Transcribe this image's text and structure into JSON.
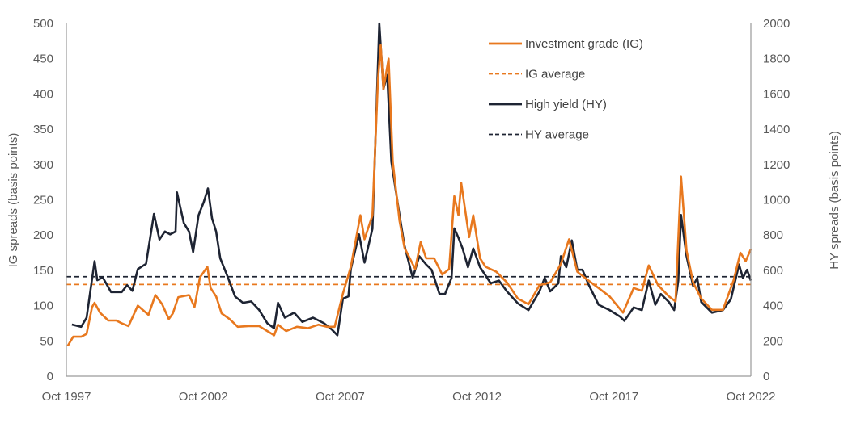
{
  "chart_data": {
    "type": "line",
    "title": "",
    "xlabel": "",
    "ylabel": "IG spreads (basis points)",
    "y2label": "HY spreads (basis points)",
    "xlim": [
      1997.75,
      2022.75
    ],
    "ylim": [
      0,
      500
    ],
    "y2lim": [
      0,
      2000
    ],
    "grid": false,
    "legend_position": "top-right",
    "x_ticks": [
      {
        "value": 1997.75,
        "label": "Oct 1997"
      },
      {
        "value": 2002.75,
        "label": "Oct 2002"
      },
      {
        "value": 2007.75,
        "label": "Oct 2007"
      },
      {
        "value": 2012.75,
        "label": "Oct 2012"
      },
      {
        "value": 2017.75,
        "label": "Oct 2017"
      },
      {
        "value": 2022.75,
        "label": "Oct 2022"
      }
    ],
    "y_ticks": [
      "0",
      "50",
      "100",
      "150",
      "200",
      "250",
      "300",
      "350",
      "400",
      "450",
      "500"
    ],
    "y2_ticks": [
      "0",
      "200",
      "400",
      "600",
      "800",
      "1000",
      "1200",
      "1400",
      "1600",
      "1800",
      "2000"
    ],
    "colors": {
      "ig": "#E8781E",
      "hy": "#1E2433"
    },
    "series": [
      {
        "name": "Investment grade (IG)",
        "axis": "left",
        "style": "solid",
        "x": [
          1997.8,
          1998.0,
          1998.29,
          1998.49,
          1998.69,
          1998.78,
          1998.98,
          1999.28,
          1999.57,
          1999.77,
          2000.02,
          2000.36,
          2000.75,
          2001.0,
          2001.25,
          2001.49,
          2001.64,
          2001.84,
          2002.23,
          2002.43,
          2002.63,
          2002.9,
          2003.02,
          2003.22,
          2003.42,
          2003.71,
          2004.01,
          2004.4,
          2004.79,
          2005.09,
          2005.34,
          2005.48,
          2005.78,
          2006.17,
          2006.57,
          2006.96,
          2007.26,
          2007.55,
          2007.85,
          2008.14,
          2008.49,
          2008.64,
          2008.93,
          2009.13,
          2009.23,
          2009.33,
          2009.52,
          2009.67,
          2009.92,
          2010.1,
          2010.49,
          2010.69,
          2010.89,
          2011.18,
          2011.48,
          2011.73,
          2011.92,
          2012.07,
          2012.17,
          2012.46,
          2012.61,
          2012.86,
          2013.06,
          2013.45,
          2013.84,
          2014.24,
          2014.63,
          2015.03,
          2015.42,
          2015.81,
          2016.11,
          2016.41,
          2016.8,
          2017.19,
          2017.59,
          2018.08,
          2018.47,
          2018.77,
          2019.02,
          2019.36,
          2019.76,
          2020.0,
          2020.2,
          2020.4,
          2020.64,
          2020.94,
          2021.33,
          2021.73,
          2022.12,
          2022.37,
          2022.56,
          2022.75
        ],
        "values": [
          43,
          56,
          56,
          60,
          98,
          104,
          90,
          79,
          79,
          75,
          71,
          100,
          87,
          115,
          102,
          81,
          89,
          112,
          115,
          98,
          140,
          155,
          125,
          113,
          89,
          81,
          70,
          71,
          71,
          64,
          58,
          73,
          64,
          70,
          68,
          73,
          70,
          70,
          117,
          155,
          228,
          194,
          228,
          419,
          469,
          407,
          450,
          304,
          220,
          182,
          152,
          190,
          167,
          167,
          144,
          152,
          255,
          228,
          274,
          197,
          228,
          167,
          155,
          148,
          133,
          110,
          102,
          129,
          133,
          159,
          194,
          148,
          136,
          125,
          113,
          90,
          125,
          121,
          157,
          129,
          113,
          106,
          283,
          178,
          133,
          110,
          94,
          94,
          136,
          175,
          163,
          180
        ]
      },
      {
        "name": "IG average",
        "axis": "left",
        "style": "dashed",
        "value": 130
      },
      {
        "name": "High yield (HY)",
        "axis": "right",
        "style": "solid",
        "x": [
          1997.95,
          1998.29,
          1998.49,
          1998.78,
          1998.88,
          1999.08,
          1999.38,
          1999.77,
          1999.97,
          2000.16,
          2000.36,
          2000.66,
          2000.95,
          2001.15,
          2001.35,
          2001.54,
          2001.74,
          2001.79,
          2002.04,
          2002.23,
          2002.38,
          2002.58,
          2002.77,
          2002.92,
          2003.07,
          2003.22,
          2003.37,
          2003.61,
          2003.91,
          2004.2,
          2004.5,
          2004.79,
          2005.09,
          2005.34,
          2005.48,
          2005.73,
          2006.07,
          2006.37,
          2006.76,
          2007.16,
          2007.45,
          2007.65,
          2007.85,
          2008.05,
          2008.14,
          2008.44,
          2008.64,
          2008.93,
          2009.08,
          2009.18,
          2009.33,
          2009.47,
          2009.62,
          2009.92,
          2010.1,
          2010.4,
          2010.64,
          2010.89,
          2011.09,
          2011.38,
          2011.58,
          2011.82,
          2011.92,
          2012.07,
          2012.22,
          2012.42,
          2012.61,
          2012.86,
          2013.25,
          2013.55,
          2013.84,
          2014.24,
          2014.63,
          2015.03,
          2015.22,
          2015.42,
          2015.72,
          2015.81,
          2016.01,
          2016.21,
          2016.41,
          2016.6,
          2016.8,
          2017.19,
          2017.59,
          2017.98,
          2018.13,
          2018.47,
          2018.77,
          2019.02,
          2019.26,
          2019.46,
          2019.76,
          2019.95,
          2020.1,
          2020.2,
          2020.4,
          2020.64,
          2020.79,
          2020.94,
          2021.33,
          2021.73,
          2022.02,
          2022.32,
          2022.46,
          2022.61,
          2022.75
        ],
        "values": [
          293,
          280,
          332,
          652,
          544,
          560,
          477,
          477,
          516,
          484,
          607,
          637,
          920,
          775,
          820,
          804,
          820,
          1042,
          868,
          820,
          704,
          912,
          988,
          1064,
          896,
          820,
          668,
          576,
          452,
          416,
          424,
          376,
          300,
          272,
          416,
          332,
          360,
          308,
          332,
          300,
          264,
          232,
          440,
          452,
          608,
          804,
          644,
          836,
          1524,
          2000,
          1628,
          1708,
          1216,
          912,
          740,
          557,
          680,
          633,
          603,
          466,
          466,
          557,
          838,
          785,
          724,
          618,
          724,
          618,
          527,
          542,
          481,
          413,
          375,
          481,
          557,
          481,
          527,
          680,
          618,
          770,
          603,
          603,
          527,
          405,
          375,
          337,
          314,
          390,
          375,
          542,
          405,
          466,
          420,
          375,
          542,
          914,
          680,
          512,
          557,
          420,
          360,
          375,
          436,
          633,
          557,
          603,
          542
        ]
      },
      {
        "name": "HY average",
        "axis": "right",
        "style": "dashed",
        "value": 564
      }
    ]
  }
}
